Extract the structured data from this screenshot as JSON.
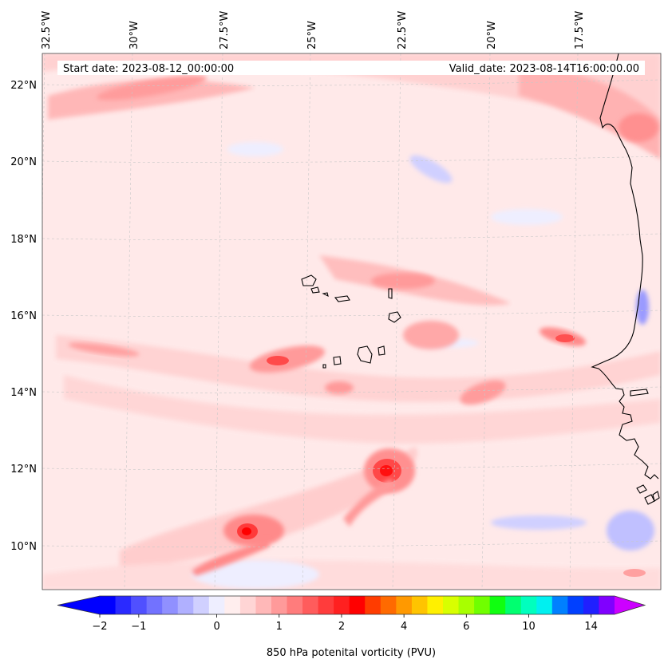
{
  "chart_data": {
    "type": "heatmap",
    "annotations": {
      "start_date": "Start date: 2023-08-12_00:00:00",
      "valid_date": "Valid_date: 2023-08-14T16:00:00.00"
    },
    "x_ticks": [
      "32.5°W",
      "30°W",
      "27.5°W",
      "25°W",
      "22.5°W",
      "20°W",
      "17.5°W"
    ],
    "y_ticks": [
      "22°N",
      "20°N",
      "18°N",
      "16°N",
      "14°N",
      "12°N",
      "10°N"
    ],
    "lon_range": [
      -32.7,
      -15.2
    ],
    "lat_range": [
      8.9,
      22.8
    ],
    "colorbar": {
      "label": "850 hPa potenital vorticity (PVU)",
      "tick_labels": [
        "−2",
        "−1",
        "0",
        "1",
        "2",
        "4",
        "6",
        "10",
        "14"
      ],
      "tick_values": [
        -2,
        -1,
        0,
        1,
        2,
        4,
        6,
        10,
        14
      ],
      "extend": "both",
      "colors": [
        "#0000ff",
        "#2a2aff",
        "#5050ff",
        "#7272ff",
        "#9090ff",
        "#b0b0ff",
        "#d0d0ff",
        "#eeeeff",
        "#ffeeee",
        "#ffd5d5",
        "#ffb8b8",
        "#ff9a9a",
        "#ff7c7c",
        "#ff5c5c",
        "#ff3c3c",
        "#ff2020",
        "#ff0000",
        "#ff3c00",
        "#ff6a00",
        "#ff9900",
        "#ffc400",
        "#fff000",
        "#d8ff00",
        "#a8ff00",
        "#70ff00",
        "#10ff10",
        "#00ff70",
        "#00ffbe",
        "#00f0f0",
        "#0080ff",
        "#0040ff",
        "#2020ff",
        "#8000ff"
      ],
      "under_color": "#0000ff",
      "over_color": "#cc00ff"
    },
    "background_color": "#ffe9e9",
    "features": [
      {
        "lon": -21.1,
        "lat": 11.9,
        "value": 2.3
      },
      {
        "lon": -26.4,
        "lat": 10.4,
        "value": 2.0
      },
      {
        "lon": -24.7,
        "lat": 14.8,
        "value": 1.6
      },
      {
        "lon": -17.0,
        "lat": 15.3,
        "value": 1.4
      },
      {
        "lon": -15.2,
        "lat": 16.2,
        "value": -1.2
      }
    ]
  }
}
